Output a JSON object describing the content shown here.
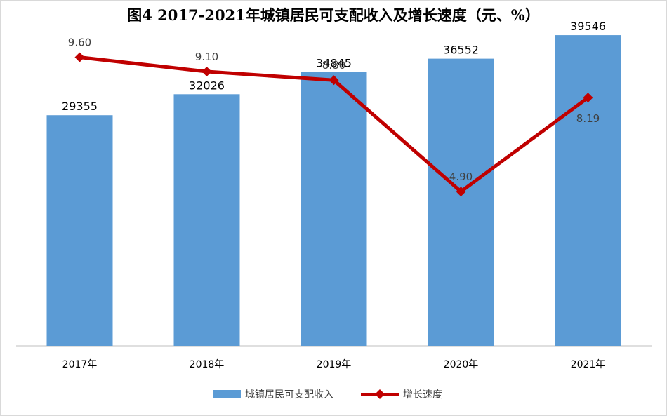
{
  "chart_data": {
    "type": "bar",
    "title": "图4 2017-2021年城镇居民可支配收入及增长速度（元、%）",
    "categories": [
      "2017年",
      "2018年",
      "2019年",
      "2020年",
      "2021年"
    ],
    "series": [
      {
        "name": "城镇居民可支配收入",
        "type": "bar",
        "axis": "primary",
        "values": [
          29355,
          32026,
          34845,
          36552,
          39546
        ],
        "labels": [
          "29355",
          "32026",
          "34845",
          "36552",
          "39546"
        ],
        "color": "#5b9bd5"
      },
      {
        "name": "增长速度",
        "type": "line",
        "axis": "secondary",
        "values": [
          9.6,
          9.1,
          8.8,
          4.9,
          8.19
        ],
        "labels": [
          "9.60",
          "9.10",
          "8.80",
          "4.90",
          "8.19"
        ],
        "color": "#c00000"
      }
    ],
    "ylim": [
      0,
      40000
    ],
    "y2lim": [
      -0.5,
      10.5
    ],
    "grid": false,
    "legend_position": "bottom"
  }
}
